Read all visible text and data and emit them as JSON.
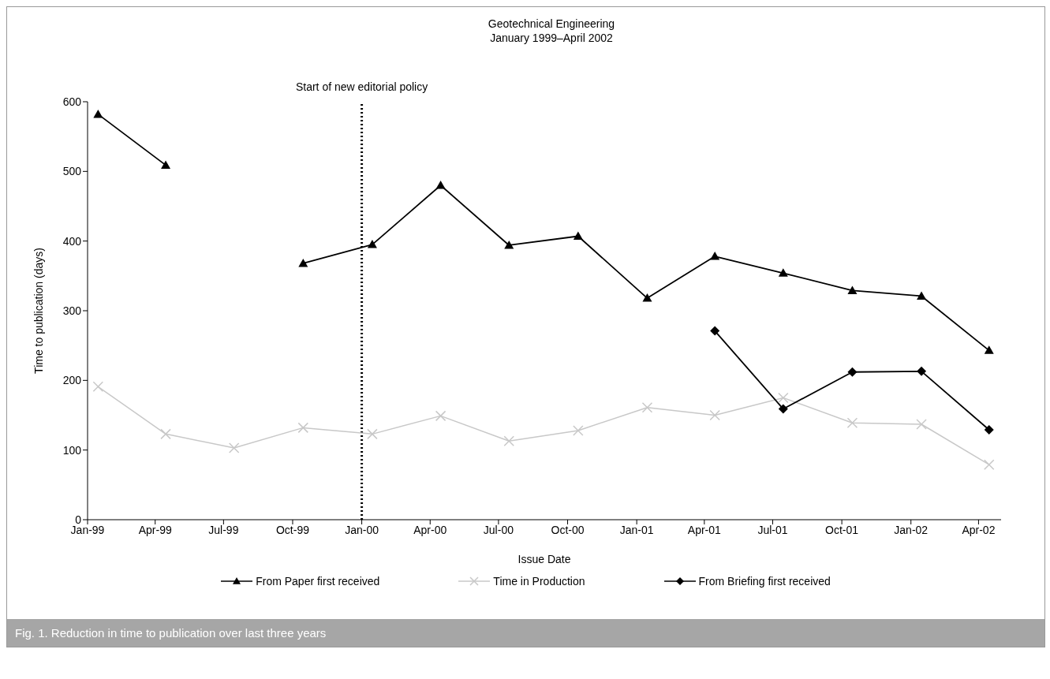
{
  "chart_data": {
    "type": "line",
    "title": "Geotechnical Engineering\nJanuary 1999–April 2002",
    "xlabel": "Issue Date",
    "ylabel": "Time to publication (days)",
    "x": [
      "1999-01-15",
      "1999-04-15",
      "1999-07-15",
      "1999-10-15",
      "2000-01-15",
      "2000-04-15",
      "2000-07-15",
      "2000-10-15",
      "2001-01-15",
      "2001-04-15",
      "2001-07-15",
      "2001-10-15",
      "2002-01-15",
      "2002-04-15"
    ],
    "series": [
      {
        "name": "From Paper first received",
        "color": "#000000",
        "marker": "triangle",
        "values": [
          582,
          509,
          null,
          368,
          395,
          480,
          394,
          407,
          318,
          378,
          354,
          329,
          321,
          243
        ]
      },
      {
        "name": "Time in Production",
        "color": "#c8c8c8",
        "marker": "cross",
        "values": [
          191,
          123,
          103,
          132,
          123,
          149,
          113,
          128,
          161,
          150,
          175,
          139,
          137,
          79
        ]
      },
      {
        "name": "From Briefing first received",
        "color": "#000000",
        "marker": "diamond",
        "values": [
          null,
          null,
          null,
          null,
          null,
          null,
          null,
          null,
          null,
          271,
          159,
          212,
          213,
          129
        ]
      }
    ],
    "xlim": [
      "1999-01-01",
      "2002-05-01"
    ],
    "xticks": [
      {
        "value": "1999-01-01",
        "label": "Jan-99"
      },
      {
        "value": "1999-04-01",
        "label": "Apr-99"
      },
      {
        "value": "1999-07-01",
        "label": "Jul-99"
      },
      {
        "value": "1999-10-01",
        "label": "Oct-99"
      },
      {
        "value": "2000-01-01",
        "label": "Jan-00"
      },
      {
        "value": "2000-04-01",
        "label": "Apr-00"
      },
      {
        "value": "2000-07-01",
        "label": "Jul-00"
      },
      {
        "value": "2000-10-01",
        "label": "Oct-00"
      },
      {
        "value": "2001-01-01",
        "label": "Jan-01"
      },
      {
        "value": "2001-04-01",
        "label": "Apr-01"
      },
      {
        "value": "2001-07-01",
        "label": "Jul-01"
      },
      {
        "value": "2001-10-01",
        "label": "Oct-01"
      },
      {
        "value": "2002-01-01",
        "label": "Jan-02"
      },
      {
        "value": "2002-04-01",
        "label": "Apr-02"
      }
    ],
    "ylim": [
      0,
      600
    ],
    "yticks": [
      0,
      100,
      200,
      300,
      400,
      500,
      600
    ],
    "ref_lines": [
      {
        "axis": "x",
        "value": "2000-01-01",
        "label": "Start of new editorial policy",
        "color": "#000000",
        "line_style": "dotted"
      }
    ],
    "grid": false,
    "legend": "bottom",
    "annotations": [
      "Fig. 1. Reduction in time to publication over last three years"
    ]
  }
}
